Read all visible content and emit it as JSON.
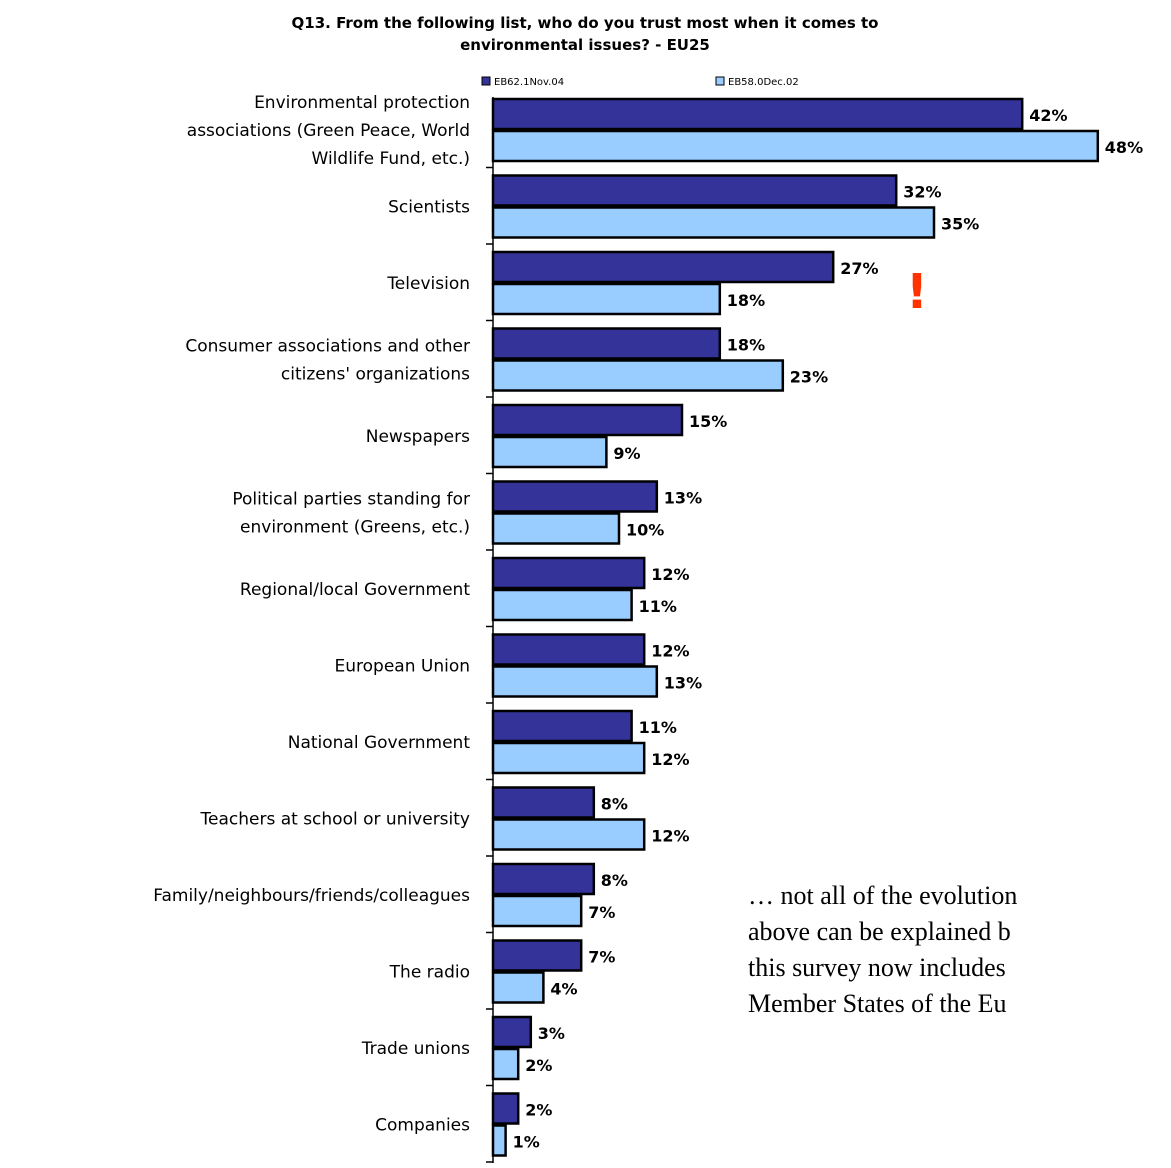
{
  "colors": {
    "series_1": "#333399",
    "series_2": "#99ccff",
    "bar_outline": "#000000",
    "alert": "#ff3300",
    "text": "#000000"
  },
  "chart_data": {
    "type": "bar",
    "orientation": "horizontal",
    "title": "Q13. From the following list, who do you trust most when it comes to environmental issues? - EU25",
    "title_lines": [
      "Q13. From the following list, who do you trust most when it comes to",
      "environmental issues? - EU25"
    ],
    "legend_position": "top",
    "categories": [
      "Environmental protection associations (Green Peace, World Wildlife Fund, etc.)",
      "Scientists",
      "Television",
      "Consumer associations and other citizens' organizations",
      "Newspapers",
      "Political parties standing for environment (Greens, etc.)",
      "Regional/local Government",
      "European Union",
      "National Government",
      "Teachers at school or university",
      "Family/neighbours/friends/colleagues",
      "The radio",
      "Trade unions",
      "Companies"
    ],
    "category_label_lines": [
      [
        "Environmental protection",
        "associations (Green Peace, World",
        "Wildlife Fund, etc.)"
      ],
      [
        "Scientists"
      ],
      [
        "Television"
      ],
      [
        "Consumer associations and other",
        "citizens' organizations"
      ],
      [
        "Newspapers"
      ],
      [
        "Political parties standing for",
        "environment (Greens, etc.)"
      ],
      [
        "Regional/local Government"
      ],
      [
        "European Union"
      ],
      [
        "National Government"
      ],
      [
        "Teachers at school or university"
      ],
      [
        "Family/neighbours/friends/colleagues"
      ],
      [
        "The radio"
      ],
      [
        "Trade unions"
      ],
      [
        "Companies"
      ]
    ],
    "series": [
      {
        "name": "EB62.1Nov.04",
        "values": [
          42,
          32,
          27,
          18,
          15,
          13,
          12,
          12,
          11,
          8,
          8,
          7,
          3,
          2
        ]
      },
      {
        "name": "EB58.0Dec.02",
        "values": [
          48,
          35,
          18,
          23,
          9,
          10,
          11,
          13,
          12,
          12,
          7,
          4,
          2,
          1
        ]
      }
    ],
    "value_suffix": "%",
    "xlim": [
      0,
      48
    ],
    "grid": false,
    "annotations": [
      {
        "text": "!",
        "category_index": 2
      }
    ]
  },
  "note": {
    "lines": [
      "… not all of the evolution",
      "above can be explained b",
      "this survey now includes",
      "Member States of the Eu"
    ]
  }
}
